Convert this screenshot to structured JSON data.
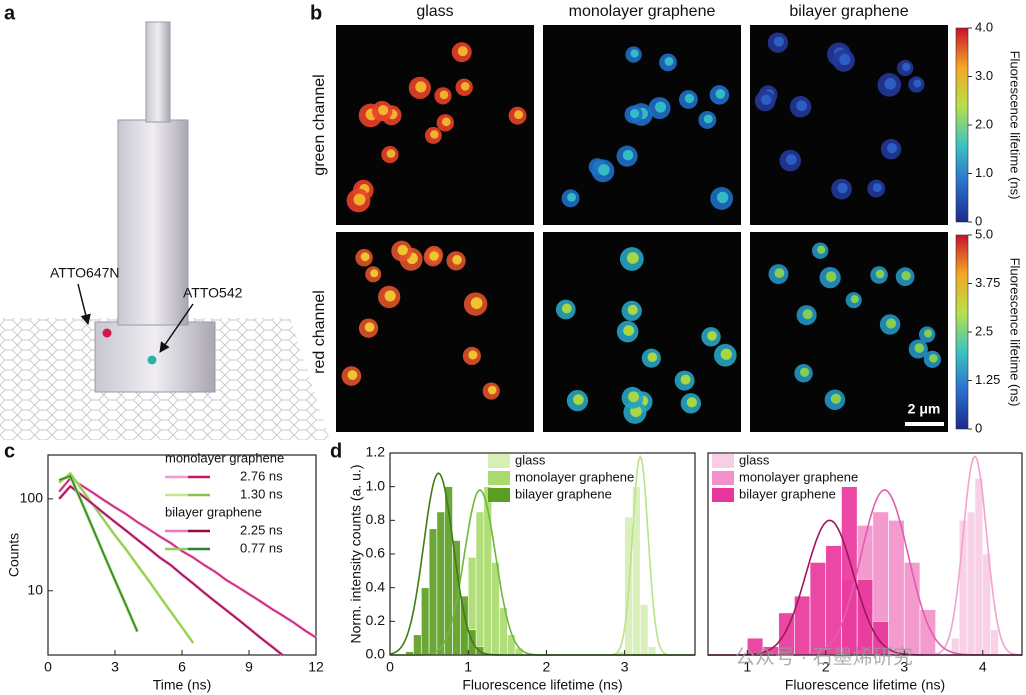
{
  "panel_labels": [
    "a",
    "b",
    "c",
    "d"
  ],
  "panel_a": {
    "labels": [
      "ATTO647N",
      "ATTO542"
    ],
    "dot_colors": [
      "#d6164a",
      "#2ab3a3"
    ]
  },
  "panel_b": {
    "columns": [
      "glass",
      "monolayer graphene",
      "bilayer graphene"
    ],
    "rows": [
      "green channel",
      "red channel"
    ],
    "images": [
      [
        {
          "colors": [
            "#e8412a",
            "#f6c02e"
          ]
        },
        {
          "colors": [
            "#1f6fc4",
            "#36c3c8"
          ]
        },
        {
          "colors": [
            "#23389a",
            "#2f63c9"
          ]
        }
      ],
      [
        {
          "colors": [
            "#e0522c",
            "#f3d330"
          ]
        },
        {
          "colors": [
            "#26a4c2",
            "#b6de3a"
          ]
        },
        {
          "colors": [
            "#2495c4",
            "#8fd64a"
          ]
        }
      ]
    ],
    "colorbars": [
      {
        "title": "Fluorescence lifetime (ns)",
        "lim": [
          0,
          4
        ],
        "ticks": [
          0,
          {
            "value": 1,
            "label": "1.0"
          },
          {
            "value": 2,
            "label": "2.0"
          },
          {
            "value": 3,
            "label": "3.0"
          },
          {
            "value": 4,
            "label": "4.0"
          }
        ]
      },
      {
        "title": "Fluorescence lifetime (ns)",
        "lim": [
          0,
          5
        ],
        "ticks": [
          0,
          1.25,
          2.5,
          3.75,
          {
            "value": 5,
            "label": "5.0"
          }
        ]
      }
    ],
    "scale_bar": "2 μm"
  },
  "chart_data": [
    {
      "type": "line",
      "xlabel": "Time (ns)",
      "ylabel": "Counts",
      "log_y": true,
      "x": [
        0,
        0.5,
        1,
        1.5,
        2,
        2.5,
        3,
        3.5,
        4,
        4.5,
        5,
        5.5,
        6,
        6.5,
        7,
        7.5,
        8,
        8.5,
        9,
        9.5,
        10,
        10.5,
        11,
        11.5,
        12
      ],
      "xlim": [
        0,
        12
      ],
      "xticks": [
        0,
        3,
        6,
        9,
        12
      ],
      "ylim": [
        2,
        300
      ],
      "yticks": [
        10,
        100
      ],
      "legend_groups": [
        "monolayer graphene",
        "bilayer graphene"
      ],
      "series": [
        {
          "name": "2.76 ns",
          "color": "#f49ad0",
          "fit_color": "#c0186a",
          "values": [
            null,
            120,
            167,
            140,
            117,
            97,
            81,
            68,
            56,
            47,
            39,
            33,
            27,
            23,
            19,
            16,
            13,
            11,
            9.2,
            7.7,
            6.4,
            5.4,
            4.5,
            3.7,
            3.1
          ]
        },
        {
          "name": "1.30 ns",
          "color": "#c4e78e",
          "fit_color": "#86c74a",
          "values": [
            null,
            150,
            189,
            128,
            87,
            59,
            40,
            28,
            19,
            13,
            8.7,
            5.9,
            4.0,
            2.7,
            null,
            null,
            null,
            null,
            null,
            null,
            null,
            null,
            null,
            null,
            null
          ]
        },
        {
          "name": "2.25 ns",
          "color": "#ee78bb",
          "fit_color": "#8c0c40",
          "values": [
            null,
            100,
            137,
            110,
            88,
            70,
            56,
            45,
            36,
            29,
            23,
            19,
            15,
            12,
            9.5,
            7.6,
            6.1,
            4.9,
            3.9,
            3.1,
            2.5,
            2.0,
            null,
            null,
            null
          ]
        },
        {
          "name": "0.77 ns",
          "color": "#8fd05a",
          "fit_color": "#2e7d32",
          "values": [
            null,
            160,
            177,
            93,
            48,
            25,
            13,
            6.9,
            3.6,
            null,
            null,
            null,
            null,
            null,
            null,
            null,
            null,
            null,
            null,
            null,
            null,
            null,
            null,
            null,
            null
          ]
        }
      ]
    },
    {
      "type": "histogram",
      "xlabel": "Fluorescence lifetime (ns)",
      "ylabel": "Norm. intensity counts (a. u.)",
      "xlim": [
        0,
        3.9
      ],
      "xticks": [
        0,
        1,
        2,
        3
      ],
      "ylim": [
        0,
        1.2
      ],
      "yticks": [
        {
          "value": 0,
          "label": "0.0"
        },
        0.2,
        0.4,
        0.6,
        0.8,
        {
          "value": 1,
          "label": "1.0"
        },
        1.2
      ],
      "series": [
        {
          "name": "glass",
          "color": "#d6efb4",
          "fit_color": "#b9e38a",
          "bins": [
            2.9,
            3.0,
            3.1,
            3.2,
            3.3,
            3.4
          ],
          "values": [
            0.02,
            0.82,
            1.0,
            0.3,
            0.05
          ],
          "fit": {
            "mean": 3.2,
            "sd": 0.1,
            "peak": 1.18
          }
        },
        {
          "name": "monolayer graphene",
          "color": "#a9da6c",
          "fit_color": "#6fb83a",
          "bins": [
            0.9,
            1.0,
            1.1,
            1.2,
            1.3,
            1.4,
            1.5,
            1.6,
            1.7
          ],
          "values": [
            0.3,
            0.58,
            0.85,
            1.0,
            0.55,
            0.28,
            0.12,
            0.04
          ],
          "fit": {
            "mean": 1.15,
            "sd": 0.2,
            "peak": 0.98
          }
        },
        {
          "name": "bilayer graphene",
          "color": "#5c9e22",
          "fit_color": "#3f7d14",
          "bins": [
            0.2,
            0.3,
            0.4,
            0.5,
            0.6,
            0.7,
            0.8,
            0.9,
            1.0,
            1.1,
            1.2
          ],
          "values": [
            0.02,
            0.12,
            0.4,
            0.75,
            0.85,
            1.0,
            0.68,
            0.35,
            0.15,
            0.05
          ],
          "fit": {
            "mean": 0.62,
            "sd": 0.19,
            "peak": 1.08
          }
        }
      ]
    },
    {
      "type": "histogram",
      "xlabel": "Fluorescence lifetime (ns)",
      "xlim": [
        0.5,
        4.5
      ],
      "xticks": [
        1,
        2,
        3,
        4
      ],
      "ylim": [
        0,
        1.2
      ],
      "series": [
        {
          "name": "glass",
          "color": "#f8cde5",
          "fit_color": "#f2a2d0",
          "bins": [
            3.6,
            3.7,
            3.8,
            3.9,
            4.0,
            4.1,
            4.2
          ],
          "values": [
            0.1,
            0.8,
            0.85,
            1.05,
            0.6,
            0.15
          ],
          "fit": {
            "mean": 3.9,
            "sd": 0.15,
            "peak": 1.18
          }
        },
        {
          "name": "monolayer graphene",
          "color": "#f290c9",
          "fit_color": "#e45cae",
          "bins": [
            2.2,
            2.4,
            2.6,
            2.8,
            3.0,
            3.2,
            3.4
          ],
          "values": [
            0.45,
            0.77,
            0.85,
            0.8,
            0.55,
            0.27
          ],
          "fit": {
            "mean": 2.75,
            "sd": 0.3,
            "peak": 0.98
          }
        },
        {
          "name": "bilayer graphene",
          "color": "#e8359b",
          "fit_color": "#a0155e",
          "bins": [
            1.0,
            1.2,
            1.4,
            1.6,
            1.8,
            2.0,
            2.2,
            2.4,
            2.6,
            2.8
          ],
          "values": [
            0.1,
            0.05,
            0.25,
            0.35,
            0.55,
            0.65,
            1.0,
            0.45,
            0.2
          ],
          "fit": {
            "mean": 2.05,
            "sd": 0.3,
            "peak": 0.8
          }
        }
      ]
    }
  ],
  "watermark": "公众号 · 石墨烯研究"
}
